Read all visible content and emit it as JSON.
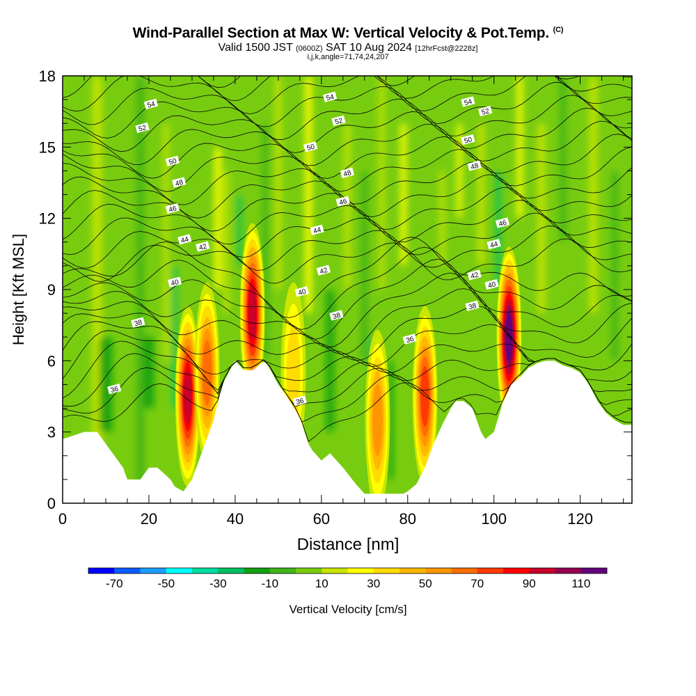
{
  "chart_data": {
    "type": "heatmap",
    "title": "Wind-Parallel Section at Max W: Vertical Velocity & Pot.Temp.",
    "copyright_mark": "(C)",
    "subtitle": {
      "prefix": "Valid 1500 JST",
      "utc": "(0600Z)",
      "date": "SAT 10 Aug 2024",
      "forecast": "[12hrFcst@2228z]"
    },
    "section_info": "i,j,k,angle=71,74,24,207",
    "xlabel": "Distance [nm]",
    "ylabel": "Height [Kft MSL]",
    "xlim": [
      0,
      132
    ],
    "ylim": [
      0,
      18
    ],
    "xticks": [
      "0",
      "20",
      "40",
      "60",
      "80",
      "100",
      "120"
    ],
    "yticks": [
      "0",
      "3",
      "6",
      "9",
      "12",
      "15",
      "18"
    ],
    "grid": false,
    "colorbar": {
      "label": "Vertical Velocity [cm/s]",
      "tick_labels": [
        "-70",
        "-50",
        "-30",
        "-10",
        "10",
        "30",
        "50",
        "70",
        "90",
        "110"
      ],
      "levels": [
        -80,
        -70,
        -60,
        -50,
        -40,
        -30,
        -20,
        -10,
        0,
        10,
        20,
        30,
        40,
        50,
        60,
        70,
        80,
        90,
        100,
        110,
        120
      ],
      "colors": [
        "#0000ff",
        "#0a5cff",
        "#1a9cff",
        "#00ffff",
        "#00dca0",
        "#00c060",
        "#10a010",
        "#40b418",
        "#78cc10",
        "#c8e600",
        "#ffff00",
        "#ffdc00",
        "#ffb800",
        "#ff9600",
        "#ff6e00",
        "#ff3a00",
        "#ff0000",
        "#c8002a",
        "#960050",
        "#64007a"
      ]
    },
    "terrain": {
      "x": [
        0,
        5,
        8,
        10,
        12,
        14,
        15,
        18,
        20,
        22,
        25,
        26,
        28,
        30,
        32,
        35,
        37,
        40,
        42,
        44,
        47,
        50,
        53,
        55,
        57,
        58,
        60,
        62,
        65,
        68,
        70,
        73,
        76,
        79,
        80,
        82,
        84,
        86,
        88,
        90,
        91,
        93,
        95,
        97,
        98,
        100,
        102,
        104,
        106,
        108,
        110,
        112,
        114,
        116,
        118,
        120,
        122,
        124,
        126,
        128,
        130,
        132
      ],
      "y": [
        2.7,
        3.0,
        3.0,
        2.5,
        2.0,
        1.5,
        1.0,
        1.0,
        1.5,
        1.5,
        1.0,
        0.7,
        0.5,
        1.0,
        2.0,
        3.5,
        5.0,
        6.0,
        5.6,
        5.6,
        6.0,
        5.0,
        4.2,
        3.6,
        2.5,
        2.2,
        1.8,
        2.1,
        1.5,
        0.8,
        0.4,
        0.4,
        0.4,
        0.4,
        0.5,
        0.8,
        1.5,
        2.5,
        3.3,
        4.0,
        4.3,
        4.3,
        4.0,
        3.0,
        2.7,
        3.0,
        4.2,
        5.0,
        5.3,
        5.7,
        5.9,
        6.0,
        6.0,
        5.8,
        5.7,
        5.5,
        5.0,
        4.3,
        3.8,
        3.5,
        3.3,
        3.3
      ]
    },
    "updraft_cores": [
      {
        "x": 29,
        "y": 4.5,
        "max_w": 95
      },
      {
        "x": 33.5,
        "y": 5.5,
        "max_w": 65
      },
      {
        "x": 44,
        "y": 8.0,
        "max_w": 100
      },
      {
        "x": 53.5,
        "y": 5.5,
        "max_w": 40
      },
      {
        "x": 73,
        "y": 3.5,
        "max_w": 60
      },
      {
        "x": 84,
        "y": 4.5,
        "max_w": 75
      },
      {
        "x": 103.5,
        "y": 7.0,
        "max_w": 115
      }
    ],
    "potential_temperature_labels": [
      {
        "text": "54",
        "x": 20.5,
        "y": 16.8
      },
      {
        "text": "52",
        "x": 18.5,
        "y": 15.8
      },
      {
        "text": "50",
        "x": 25.5,
        "y": 14.4
      },
      {
        "text": "48",
        "x": 27.0,
        "y": 13.5
      },
      {
        "text": "46",
        "x": 25.5,
        "y": 12.4
      },
      {
        "text": "44",
        "x": 28.3,
        "y": 11.1
      },
      {
        "text": "42",
        "x": 32.5,
        "y": 10.8
      },
      {
        "text": "40",
        "x": 26.0,
        "y": 9.3
      },
      {
        "text": "38",
        "x": 17.5,
        "y": 7.6
      },
      {
        "text": "36",
        "x": 12.0,
        "y": 4.8
      },
      {
        "text": "54",
        "x": 62.0,
        "y": 17.1
      },
      {
        "text": "52",
        "x": 64.0,
        "y": 16.1
      },
      {
        "text": "50",
        "x": 57.5,
        "y": 15.0
      },
      {
        "text": "48",
        "x": 66.0,
        "y": 13.9
      },
      {
        "text": "46",
        "x": 65.0,
        "y": 12.7
      },
      {
        "text": "44",
        "x": 59.0,
        "y": 11.5
      },
      {
        "text": "42",
        "x": 60.5,
        "y": 9.8
      },
      {
        "text": "40",
        "x": 55.5,
        "y": 8.9
      },
      {
        "text": "38",
        "x": 63.5,
        "y": 7.9
      },
      {
        "text": "36",
        "x": 55.0,
        "y": 4.3
      },
      {
        "text": "36",
        "x": 80.5,
        "y": 6.9
      },
      {
        "text": "54",
        "x": 94.0,
        "y": 16.9
      },
      {
        "text": "52",
        "x": 98.0,
        "y": 16.5
      },
      {
        "text": "50",
        "x": 94.0,
        "y": 15.3
      },
      {
        "text": "48",
        "x": 95.5,
        "y": 14.2
      },
      {
        "text": "46",
        "x": 102.0,
        "y": 11.8
      },
      {
        "text": "44",
        "x": 100.0,
        "y": 10.9
      },
      {
        "text": "42",
        "x": 95.5,
        "y": 9.6
      },
      {
        "text": "40",
        "x": 99.5,
        "y": 9.2
      },
      {
        "text": "38",
        "x": 95.0,
        "y": 8.3
      }
    ]
  }
}
